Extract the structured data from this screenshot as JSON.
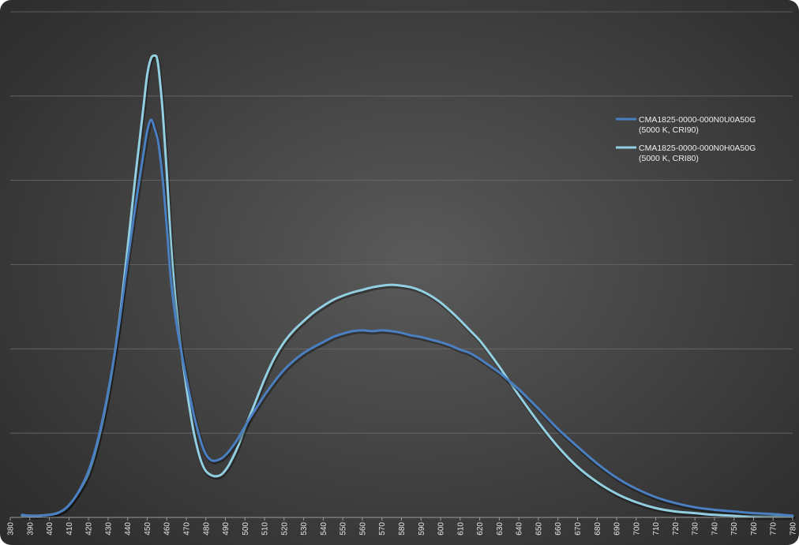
{
  "chart_data": {
    "type": "line",
    "title": "",
    "xlabel": "",
    "ylabel": "",
    "xlim": [
      380,
      780
    ],
    "ylim": [
      0,
      6
    ],
    "x_ticks": [
      380,
      390,
      400,
      410,
      420,
      430,
      440,
      450,
      460,
      470,
      480,
      490,
      500,
      510,
      520,
      530,
      540,
      550,
      560,
      570,
      580,
      590,
      600,
      610,
      620,
      630,
      640,
      650,
      660,
      670,
      680,
      690,
      700,
      710,
      720,
      730,
      740,
      750,
      760,
      770,
      780
    ],
    "y_gridlines": [
      1,
      2,
      3,
      4,
      5,
      6
    ],
    "y_tick_labels_shown": false,
    "grid": true,
    "legend_position": "top-right",
    "series": [
      {
        "name": "CMA1825-0000-000N0U0A50G",
        "legend_sublabel": "(5000 K, CRI90)",
        "color": "#4a7fc1",
        "x": [
          386,
          390,
          395,
          400,
          404,
          408,
          412,
          416,
          420,
          424,
          428,
          432,
          436,
          440,
          444,
          448,
          450,
          452,
          454,
          455,
          456,
          458,
          460,
          462,
          464,
          466,
          468,
          470,
          472,
          474,
          476,
          478,
          480,
          482,
          484,
          486,
          488,
          490,
          492,
          496,
          500,
          505,
          510,
          515,
          520,
          525,
          530,
          535,
          540,
          545,
          550,
          555,
          560,
          565,
          570,
          575,
          580,
          585,
          590,
          595,
          600,
          605,
          610,
          615,
          620,
          625,
          630,
          635,
          640,
          650,
          660,
          670,
          680,
          690,
          700,
          710,
          720,
          730,
          740,
          750,
          760,
          770,
          780
        ],
        "y": [
          0.03,
          0.02,
          0.02,
          0.03,
          0.05,
          0.1,
          0.2,
          0.35,
          0.55,
          0.85,
          1.25,
          1.75,
          2.35,
          3.05,
          3.7,
          4.3,
          4.58,
          4.72,
          4.6,
          4.52,
          4.4,
          4.0,
          3.45,
          2.85,
          2.45,
          2.15,
          1.9,
          1.65,
          1.42,
          1.2,
          1.02,
          0.86,
          0.75,
          0.69,
          0.67,
          0.68,
          0.7,
          0.74,
          0.79,
          0.92,
          1.08,
          1.27,
          1.45,
          1.61,
          1.75,
          1.86,
          1.95,
          2.02,
          2.08,
          2.14,
          2.18,
          2.21,
          2.22,
          2.21,
          2.22,
          2.21,
          2.19,
          2.16,
          2.14,
          2.11,
          2.08,
          2.04,
          1.99,
          1.95,
          1.88,
          1.8,
          1.72,
          1.62,
          1.52,
          1.29,
          1.05,
          0.84,
          0.64,
          0.47,
          0.34,
          0.24,
          0.17,
          0.12,
          0.09,
          0.07,
          0.05,
          0.04,
          0.02
        ]
      },
      {
        "name": "CMA1825-0000-000N0H0A50G",
        "legend_sublabel": "(5000 K, CRI80)",
        "color": "#92cfe0",
        "x": [
          386,
          390,
          395,
          400,
          404,
          408,
          412,
          416,
          420,
          424,
          428,
          432,
          436,
          440,
          444,
          448,
          450,
          452,
          454,
          455,
          456,
          458,
          460,
          462,
          464,
          466,
          468,
          470,
          472,
          474,
          476,
          478,
          480,
          482,
          484,
          486,
          488,
          490,
          492,
          496,
          500,
          505,
          510,
          515,
          520,
          525,
          530,
          535,
          540,
          545,
          550,
          555,
          560,
          565,
          570,
          575,
          580,
          585,
          590,
          595,
          600,
          605,
          610,
          615,
          620,
          625,
          630,
          635,
          640,
          650,
          660,
          670,
          680,
          690,
          700,
          710,
          720,
          730,
          740,
          750,
          760,
          770,
          780
        ],
        "y": [
          0.02,
          0.02,
          0.02,
          0.03,
          0.05,
          0.1,
          0.2,
          0.34,
          0.52,
          0.82,
          1.22,
          1.73,
          2.38,
          3.2,
          4.05,
          4.85,
          5.25,
          5.45,
          5.48,
          5.45,
          5.3,
          4.8,
          4.1,
          3.3,
          2.7,
          2.25,
          1.88,
          1.55,
          1.25,
          0.99,
          0.79,
          0.64,
          0.55,
          0.51,
          0.49,
          0.49,
          0.51,
          0.56,
          0.63,
          0.82,
          1.06,
          1.35,
          1.64,
          1.89,
          2.08,
          2.22,
          2.33,
          2.43,
          2.51,
          2.58,
          2.63,
          2.67,
          2.7,
          2.73,
          2.75,
          2.76,
          2.75,
          2.73,
          2.69,
          2.63,
          2.55,
          2.45,
          2.34,
          2.22,
          2.1,
          1.95,
          1.79,
          1.62,
          1.45,
          1.13,
          0.84,
          0.6,
          0.42,
          0.28,
          0.18,
          0.11,
          0.07,
          0.05,
          0.03,
          0.02,
          0.01,
          0.01,
          0.01
        ]
      }
    ]
  }
}
